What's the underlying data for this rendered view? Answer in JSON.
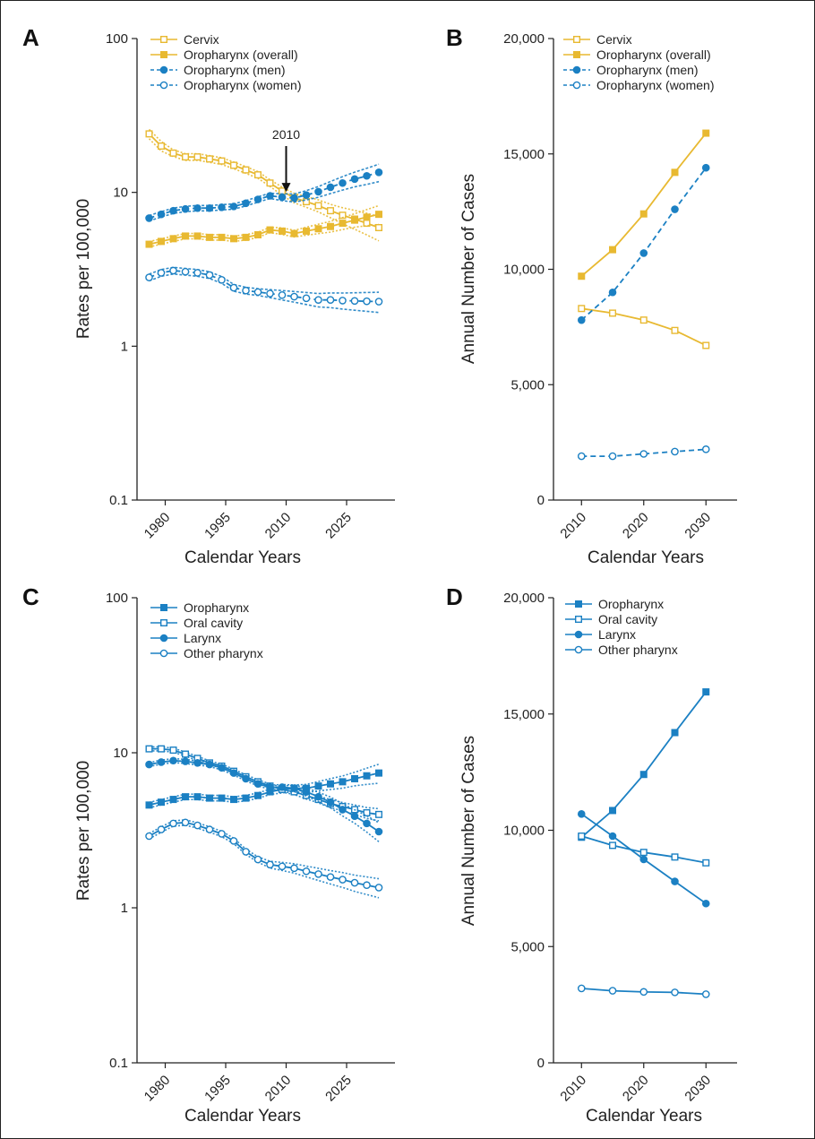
{
  "colors": {
    "gold": "#E8B931",
    "blue": "#1B80C3",
    "axis": "#222222"
  },
  "chart_data": [
    {
      "panel": "A",
      "type": "line",
      "scale": "log",
      "xlabel": "Calendar Years",
      "ylabel": "Rates per 100,000",
      "xlim": [
        1973,
        2037
      ],
      "ylim": [
        0.1,
        100
      ],
      "xticks": [
        1980,
        1995,
        2010,
        2025
      ],
      "xtick_labels": [
        "1980",
        "1995",
        "2010",
        "2025"
      ],
      "yticks": [
        0.1,
        1,
        10,
        100
      ],
      "ytick_labels": [
        "0.1",
        "1",
        "10",
        "100"
      ],
      "legend": "top-left",
      "annotation": {
        "text": "2010",
        "x": 2010,
        "y": 9.3
      },
      "series": [
        {
          "name": "Cervix",
          "color": "gold",
          "dash": false,
          "marker": "square-open",
          "x": [
            1976,
            1979,
            1982,
            1985,
            1988,
            1991,
            1994,
            1997,
            2000,
            2003,
            2006,
            2009,
            2012,
            2015,
            2018,
            2021,
            2024,
            2027,
            2030,
            2033
          ],
          "y": [
            24,
            20,
            18,
            17,
            17,
            16.5,
            16,
            15,
            14,
            13,
            11.5,
            10.2,
            9.2,
            8.7,
            8.2,
            7.6,
            7.1,
            6.7,
            6.3,
            5.9
          ],
          "band": [
            0.07,
            0.07,
            0.05,
            0.05,
            0.05,
            0.05,
            0.05,
            0.05,
            0.05,
            0.05,
            0.05,
            0.06,
            0.07,
            0.08,
            0.09,
            0.1,
            0.12,
            0.14,
            0.16,
            0.18
          ]
        },
        {
          "name": "Oropharynx (overall)",
          "color": "gold",
          "dash": false,
          "marker": "square",
          "x": [
            1976,
            1979,
            1982,
            1985,
            1988,
            1991,
            1994,
            1997,
            2000,
            2003,
            2006,
            2009,
            2012,
            2015,
            2018,
            2021,
            2024,
            2027,
            2030,
            2033
          ],
          "y": [
            4.6,
            4.8,
            5,
            5.2,
            5.2,
            5.1,
            5.1,
            5,
            5.1,
            5.3,
            5.7,
            5.6,
            5.4,
            5.6,
            5.8,
            6,
            6.3,
            6.6,
            6.9,
            7.2
          ],
          "band": [
            0.04,
            0.04,
            0.04,
            0.04,
            0.04,
            0.04,
            0.04,
            0.04,
            0.04,
            0.04,
            0.04,
            0.05,
            0.05,
            0.06,
            0.07,
            0.08,
            0.09,
            0.1,
            0.12,
            0.14
          ]
        },
        {
          "name": "Oropharynx (men)",
          "color": "blue",
          "dash": true,
          "marker": "circle",
          "x": [
            1976,
            1979,
            1982,
            1985,
            1988,
            1991,
            1994,
            1997,
            2000,
            2003,
            2006,
            2009,
            2012,
            2015,
            2018,
            2021,
            2024,
            2027,
            2030,
            2033
          ],
          "y": [
            6.8,
            7.2,
            7.6,
            7.8,
            7.9,
            7.9,
            8,
            8.1,
            8.5,
            9,
            9.5,
            9.3,
            9.2,
            9.6,
            10.1,
            10.8,
            11.5,
            12.2,
            12.8,
            13.5
          ],
          "band": [
            0.04,
            0.04,
            0.04,
            0.04,
            0.04,
            0.04,
            0.04,
            0.04,
            0.04,
            0.04,
            0.04,
            0.05,
            0.06,
            0.07,
            0.08,
            0.09,
            0.1,
            0.11,
            0.12,
            0.13
          ]
        },
        {
          "name": "Oropharynx (women)",
          "color": "blue",
          "dash": true,
          "marker": "circle-open",
          "x": [
            1976,
            1979,
            1982,
            1985,
            1988,
            1991,
            1994,
            1997,
            2000,
            2003,
            2006,
            2009,
            2012,
            2015,
            2018,
            2021,
            2024,
            2027,
            2030,
            2033
          ],
          "y": [
            2.8,
            3,
            3.1,
            3.05,
            3,
            2.9,
            2.7,
            2.4,
            2.3,
            2.25,
            2.2,
            2.15,
            2.1,
            2.05,
            2,
            2,
            1.98,
            1.97,
            1.96,
            1.95
          ],
          "band": [
            0.05,
            0.05,
            0.05,
            0.05,
            0.05,
            0.05,
            0.05,
            0.05,
            0.05,
            0.05,
            0.06,
            0.07,
            0.08,
            0.09,
            0.1,
            0.11,
            0.12,
            0.13,
            0.14,
            0.15
          ]
        }
      ]
    },
    {
      "panel": "B",
      "type": "line",
      "scale": "linear",
      "xlabel": "Calendar Years",
      "ylabel": "Annual Number of Cases",
      "xlim": [
        2005.5,
        2035
      ],
      "ylim": [
        0,
        20000
      ],
      "xticks": [
        2010,
        2020,
        2030
      ],
      "xtick_labels": [
        "2010",
        "2020",
        "2030"
      ],
      "yticks": [
        0,
        5000,
        10000,
        15000,
        20000
      ],
      "ytick_labels": [
        "0",
        "5,000",
        "10,000",
        "15,000",
        "20,000"
      ],
      "legend": "top-left",
      "series": [
        {
          "name": "Cervix",
          "color": "gold",
          "dash": false,
          "marker": "square-open",
          "x": [
            2010,
            2015,
            2020,
            2025,
            2030
          ],
          "y": [
            8300,
            8100,
            7800,
            7350,
            6700
          ]
        },
        {
          "name": "Oropharynx (overall)",
          "color": "gold",
          "dash": false,
          "marker": "square",
          "x": [
            2010,
            2015,
            2020,
            2025,
            2030
          ],
          "y": [
            9700,
            10850,
            12400,
            14200,
            15900
          ]
        },
        {
          "name": "Oropharynx (men)",
          "color": "blue",
          "dash": true,
          "marker": "circle",
          "x": [
            2010,
            2015,
            2020,
            2025,
            2030
          ],
          "y": [
            7800,
            9000,
            10700,
            12600,
            14400
          ]
        },
        {
          "name": "Oropharynx (women)",
          "color": "blue",
          "dash": true,
          "marker": "circle-open",
          "x": [
            2010,
            2015,
            2020,
            2025,
            2030
          ],
          "y": [
            1900,
            1900,
            2000,
            2100,
            2200
          ]
        }
      ]
    },
    {
      "panel": "C",
      "type": "line",
      "scale": "log",
      "xlabel": "Calendar Years",
      "ylabel": "Rates per 100,000",
      "xlim": [
        1973,
        2037
      ],
      "ylim": [
        0.1,
        100
      ],
      "xticks": [
        1980,
        1995,
        2010,
        2025
      ],
      "xtick_labels": [
        "1980",
        "1995",
        "2010",
        "2025"
      ],
      "yticks": [
        0.1,
        1,
        10,
        100
      ],
      "ytick_labels": [
        "0.1",
        "1",
        "10",
        "100"
      ],
      "legend": "top-left",
      "series": [
        {
          "name": "Oropharynx",
          "color": "blue",
          "dash": false,
          "marker": "square",
          "x": [
            1976,
            1979,
            1982,
            1985,
            1988,
            1991,
            1994,
            1997,
            2000,
            2003,
            2006,
            2009,
            2012,
            2015,
            2018,
            2021,
            2024,
            2027,
            2030,
            2033
          ],
          "y": [
            4.6,
            4.8,
            5,
            5.2,
            5.2,
            5.1,
            5.1,
            5,
            5.1,
            5.3,
            5.6,
            5.8,
            5.9,
            5.9,
            6.1,
            6.3,
            6.5,
            6.8,
            7.1,
            7.4
          ],
          "band": [
            0.04,
            0.04,
            0.04,
            0.04,
            0.04,
            0.04,
            0.04,
            0.04,
            0.04,
            0.04,
            0.04,
            0.05,
            0.05,
            0.06,
            0.07,
            0.08,
            0.09,
            0.1,
            0.12,
            0.14
          ]
        },
        {
          "name": "Oral cavity",
          "color": "blue",
          "dash": false,
          "marker": "square-open",
          "x": [
            1976,
            1979,
            1982,
            1985,
            1988,
            1991,
            1994,
            1997,
            2000,
            2003,
            2006,
            2009,
            2012,
            2015,
            2018,
            2021,
            2024,
            2027,
            2030,
            2033
          ],
          "y": [
            10.6,
            10.6,
            10.4,
            9.8,
            9.2,
            8.6,
            8.2,
            7.6,
            7,
            6.5,
            6.1,
            5.8,
            5.6,
            5.3,
            5,
            4.7,
            4.5,
            4.3,
            4.1,
            4
          ],
          "band": [
            0.03,
            0.03,
            0.03,
            0.03,
            0.03,
            0.03,
            0.03,
            0.03,
            0.03,
            0.03,
            0.03,
            0.04,
            0.04,
            0.05,
            0.05,
            0.06,
            0.06,
            0.07,
            0.08,
            0.09
          ]
        },
        {
          "name": "Larynx",
          "color": "blue",
          "dash": false,
          "marker": "circle",
          "x": [
            1976,
            1979,
            1982,
            1985,
            1988,
            1991,
            1994,
            1997,
            2000,
            2003,
            2006,
            2009,
            2012,
            2015,
            2018,
            2021,
            2024,
            2027,
            2030,
            2033
          ],
          "y": [
            8.4,
            8.7,
            8.9,
            8.8,
            8.6,
            8.4,
            8,
            7.4,
            6.8,
            6.3,
            6,
            6,
            5.9,
            5.6,
            5.2,
            4.8,
            4.3,
            3.9,
            3.5,
            3.1
          ],
          "band": [
            0.03,
            0.03,
            0.03,
            0.03,
            0.03,
            0.03,
            0.03,
            0.03,
            0.03,
            0.03,
            0.03,
            0.04,
            0.05,
            0.06,
            0.07,
            0.08,
            0.09,
            0.1,
            0.12,
            0.14
          ]
        },
        {
          "name": "Other pharynx",
          "color": "blue",
          "dash": false,
          "marker": "circle-open",
          "x": [
            1976,
            1979,
            1982,
            1985,
            1988,
            1991,
            1994,
            1997,
            2000,
            2003,
            2006,
            2009,
            2012,
            2015,
            2018,
            2021,
            2024,
            2027,
            2030,
            2033
          ],
          "y": [
            2.9,
            3.2,
            3.5,
            3.55,
            3.4,
            3.2,
            3,
            2.7,
            2.3,
            2.05,
            1.9,
            1.85,
            1.8,
            1.72,
            1.65,
            1.58,
            1.52,
            1.45,
            1.4,
            1.35
          ],
          "band": [
            0.04,
            0.04,
            0.04,
            0.04,
            0.04,
            0.04,
            0.04,
            0.04,
            0.04,
            0.04,
            0.05,
            0.06,
            0.07,
            0.08,
            0.09,
            0.1,
            0.11,
            0.12,
            0.13,
            0.14
          ]
        }
      ]
    },
    {
      "panel": "D",
      "type": "line",
      "scale": "linear",
      "xlabel": "Calendar Years",
      "ylabel": "Annual Number of Cases",
      "xlim": [
        2005.5,
        2035
      ],
      "ylim": [
        0,
        20000
      ],
      "xticks": [
        2010,
        2020,
        2030
      ],
      "xtick_labels": [
        "2010",
        "2020",
        "2030"
      ],
      "yticks": [
        0,
        5000,
        10000,
        15000,
        20000
      ],
      "ytick_labels": [
        "0",
        "5,000",
        "10,000",
        "15,000",
        "20,000"
      ],
      "legend": "top-left",
      "series": [
        {
          "name": "Oropharynx",
          "color": "blue",
          "dash": false,
          "marker": "square",
          "x": [
            2010,
            2015,
            2020,
            2025,
            2030
          ],
          "y": [
            9700,
            10850,
            12400,
            14200,
            15950
          ]
        },
        {
          "name": "Oral cavity",
          "color": "blue",
          "dash": false,
          "marker": "square-open",
          "x": [
            2010,
            2015,
            2020,
            2025,
            2030
          ],
          "y": [
            9750,
            9350,
            9050,
            8850,
            8600
          ]
        },
        {
          "name": "Larynx",
          "color": "blue",
          "dash": false,
          "marker": "circle",
          "x": [
            2010,
            2015,
            2020,
            2025,
            2030
          ],
          "y": [
            10700,
            9750,
            8750,
            7800,
            6850
          ]
        },
        {
          "name": "Other pharynx",
          "color": "blue",
          "dash": false,
          "marker": "circle-open",
          "x": [
            2010,
            2015,
            2020,
            2025,
            2030
          ],
          "y": [
            3200,
            3100,
            3050,
            3030,
            2950
          ]
        }
      ]
    }
  ]
}
